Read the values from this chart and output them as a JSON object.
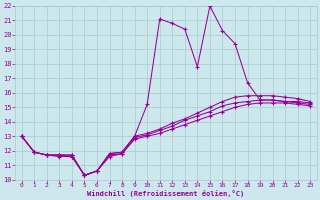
{
  "xlabel": "Windchill (Refroidissement éolien,°C)",
  "xlim": [
    -0.5,
    23.5
  ],
  "ylim": [
    10,
    22
  ],
  "xticks": [
    0,
    1,
    2,
    3,
    4,
    5,
    6,
    7,
    8,
    9,
    10,
    11,
    12,
    13,
    14,
    15,
    16,
    17,
    18,
    19,
    20,
    21,
    22,
    23
  ],
  "yticks": [
    10,
    11,
    12,
    13,
    14,
    15,
    16,
    17,
    18,
    19,
    20,
    21,
    22
  ],
  "bg_color": "#cce8ec",
  "line_color": "#990099",
  "grid_color": "#aac8cc",
  "line1_x": [
    0,
    1,
    2,
    3,
    4,
    5,
    6,
    7,
    8,
    9,
    10,
    11,
    12,
    13,
    14,
    15,
    16,
    17,
    18,
    19,
    20,
    21,
    22,
    23
  ],
  "line1_y": [
    13.0,
    11.9,
    11.7,
    11.7,
    11.7,
    10.3,
    10.6,
    11.8,
    11.9,
    13.0,
    15.2,
    21.1,
    20.8,
    20.4,
    17.8,
    22.0,
    20.3,
    19.4,
    16.7,
    15.5,
    15.5,
    15.4,
    15.3,
    15.2
  ],
  "line2_x": [
    0,
    1,
    2,
    3,
    4,
    5,
    6,
    7,
    8,
    9,
    10,
    11,
    12,
    13,
    14,
    15,
    16,
    17,
    18,
    19,
    20,
    21,
    22,
    23
  ],
  "line2_y": [
    13.0,
    11.9,
    11.7,
    11.7,
    11.7,
    10.3,
    10.6,
    11.8,
    11.9,
    13.0,
    13.2,
    13.5,
    13.9,
    14.2,
    14.6,
    15.0,
    15.4,
    15.7,
    15.8,
    15.8,
    15.8,
    15.7,
    15.6,
    15.4
  ],
  "line3_x": [
    0,
    1,
    2,
    3,
    4,
    5,
    6,
    7,
    8,
    9,
    10,
    11,
    12,
    13,
    14,
    15,
    16,
    17,
    18,
    19,
    20,
    21,
    22,
    23
  ],
  "line3_y": [
    13.0,
    11.9,
    11.7,
    11.7,
    11.6,
    10.3,
    10.6,
    11.7,
    11.8,
    12.9,
    13.1,
    13.4,
    13.7,
    14.1,
    14.4,
    14.7,
    15.1,
    15.3,
    15.4,
    15.5,
    15.5,
    15.4,
    15.4,
    15.3
  ],
  "line4_x": [
    0,
    1,
    2,
    3,
    4,
    5,
    6,
    7,
    8,
    9,
    10,
    11,
    12,
    13,
    14,
    15,
    16,
    17,
    18,
    19,
    20,
    21,
    22,
    23
  ],
  "line4_y": [
    13.0,
    11.9,
    11.7,
    11.6,
    11.6,
    10.3,
    10.6,
    11.6,
    11.8,
    12.8,
    13.0,
    13.2,
    13.5,
    13.8,
    14.1,
    14.4,
    14.7,
    15.0,
    15.2,
    15.3,
    15.3,
    15.3,
    15.2,
    15.1
  ]
}
